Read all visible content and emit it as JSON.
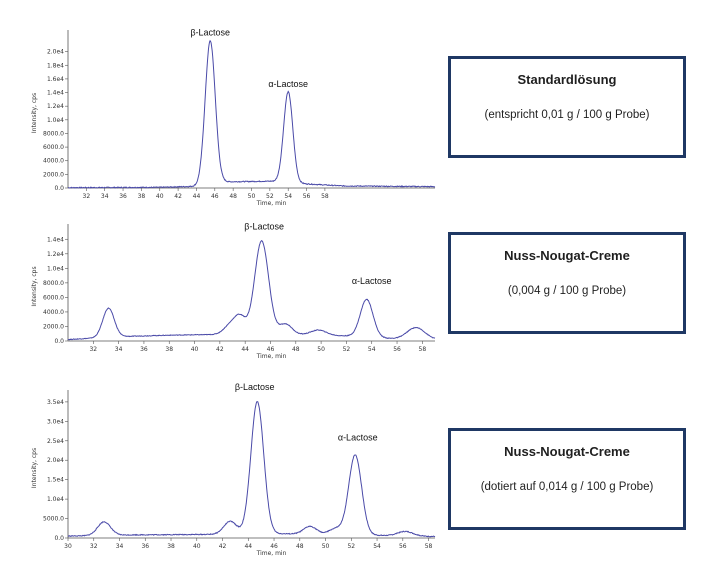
{
  "chart_data": [
    {
      "type": "line",
      "xlabel": "Time, min",
      "ylabel": "Intensity, cps",
      "xlim": [
        30,
        70
      ],
      "ylim": [
        0,
        22000
      ],
      "xticks": [
        "32",
        "34",
        "36",
        "38",
        "40",
        "42",
        "44",
        "46",
        "48",
        "50",
        "52",
        "54",
        "56",
        "58"
      ],
      "yticks": [
        "0.0",
        "2000.0",
        "4000.0",
        "6000.0",
        "8000.0",
        "1.0e4",
        "1.2e4",
        "1.4e4",
        "1.6e4",
        "1.8e4",
        "2.0e4"
      ],
      "annotations": [
        {
          "text": "β-Lactose",
          "x": 45.5,
          "y": 21500
        },
        {
          "text": "α-Lactose",
          "x": 54,
          "y": 13900
        }
      ],
      "peaks": [
        {
          "center": 45.5,
          "height": 21000,
          "width": 0.55
        },
        {
          "center": 54.0,
          "height": 13300,
          "width": 0.5
        }
      ],
      "baseline": [
        [
          30,
          50
        ],
        [
          40,
          100
        ],
        [
          44,
          250
        ],
        [
          47,
          900
        ],
        [
          52,
          1000
        ],
        [
          56,
          600
        ],
        [
          60,
          300
        ],
        [
          70,
          200
        ]
      ],
      "box": {
        "title": "Standardlösung",
        "subtitle": "(entspricht 0,01 g / 100 g Probe)"
      }
    },
    {
      "type": "line",
      "xlabel": "Time, min",
      "ylabel": "Intensity, cps",
      "xlim": [
        30,
        59
      ],
      "ylim": [
        0,
        15000
      ],
      "xticks": [
        "32",
        "34",
        "36",
        "38",
        "40",
        "42",
        "44",
        "46",
        "48",
        "50",
        "52",
        "54",
        "56",
        "58"
      ],
      "yticks": [
        "0.0",
        "2000.0",
        "4000.0",
        "6000.0",
        "8000.0",
        "1.0e4",
        "1.2e4",
        "1.4e4"
      ],
      "annotations": [
        {
          "text": "β-Lactose",
          "x": 45.5,
          "y": 14500
        },
        {
          "text": "α-Lactose",
          "x": 54,
          "y": 7000
        }
      ],
      "peaks": [
        {
          "center": 33.2,
          "height": 4000,
          "width": 0.45
        },
        {
          "center": 42.8,
          "height": 1200,
          "width": 0.5
        },
        {
          "center": 43.6,
          "height": 2300,
          "width": 0.45
        },
        {
          "center": 45.3,
          "height": 12800,
          "width": 0.55
        },
        {
          "center": 47.2,
          "height": 1400,
          "width": 0.5
        },
        {
          "center": 49.8,
          "height": 700,
          "width": 0.6
        },
        {
          "center": 53.6,
          "height": 5200,
          "width": 0.5
        },
        {
          "center": 57.5,
          "height": 1600,
          "width": 0.7
        }
      ],
      "baseline": [
        [
          30,
          200
        ],
        [
          34,
          600
        ],
        [
          38,
          800
        ],
        [
          42,
          900
        ],
        [
          46,
          1000
        ],
        [
          52,
          700
        ],
        [
          56,
          300
        ],
        [
          59,
          200
        ]
      ],
      "box": {
        "title": "Nuss-Nougat-Creme",
        "subtitle": "(0,004 g / 100 g Probe)"
      }
    },
    {
      "type": "line",
      "xlabel": "Time, min",
      "ylabel": "Intensity, cps",
      "xlim": [
        30,
        58.5
      ],
      "ylim": [
        0,
        36000
      ],
      "xticks": [
        "30",
        "32",
        "34",
        "36",
        "38",
        "40",
        "42",
        "44",
        "46",
        "48",
        "50",
        "52",
        "54",
        "56",
        "58"
      ],
      "yticks": [
        "0.0",
        "5000.0",
        "1.0e4",
        "1.5e4",
        "2.0e4",
        "2.5e4",
        "3.0e4",
        "3.5e4"
      ],
      "annotations": [
        {
          "text": "β-Lactose",
          "x": 44.5,
          "y": 36500
        },
        {
          "text": "α-Lactose",
          "x": 52.5,
          "y": 23500
        }
      ],
      "peaks": [
        {
          "center": 32.8,
          "height": 3500,
          "width": 0.5
        },
        {
          "center": 42.6,
          "height": 3300,
          "width": 0.5
        },
        {
          "center": 44.7,
          "height": 34000,
          "width": 0.5
        },
        {
          "center": 48.8,
          "height": 2000,
          "width": 0.5
        },
        {
          "center": 50.8,
          "height": 1500,
          "width": 0.5
        },
        {
          "center": 52.3,
          "height": 20500,
          "width": 0.5
        },
        {
          "center": 56.2,
          "height": 1200,
          "width": 0.6
        }
      ],
      "baseline": [
        [
          30,
          500
        ],
        [
          35,
          800
        ],
        [
          40,
          900
        ],
        [
          46,
          1100
        ],
        [
          52,
          900
        ],
        [
          56,
          500
        ],
        [
          58.5,
          400
        ]
      ],
      "box": {
        "title": "Nuss-Nougat-Creme",
        "subtitle": "(dotiert auf 0,014 g / 100 g Probe)"
      }
    }
  ],
  "colors": {
    "trace": "#4a4aa8",
    "box_border": "#1f3864",
    "axis": "#555555"
  }
}
